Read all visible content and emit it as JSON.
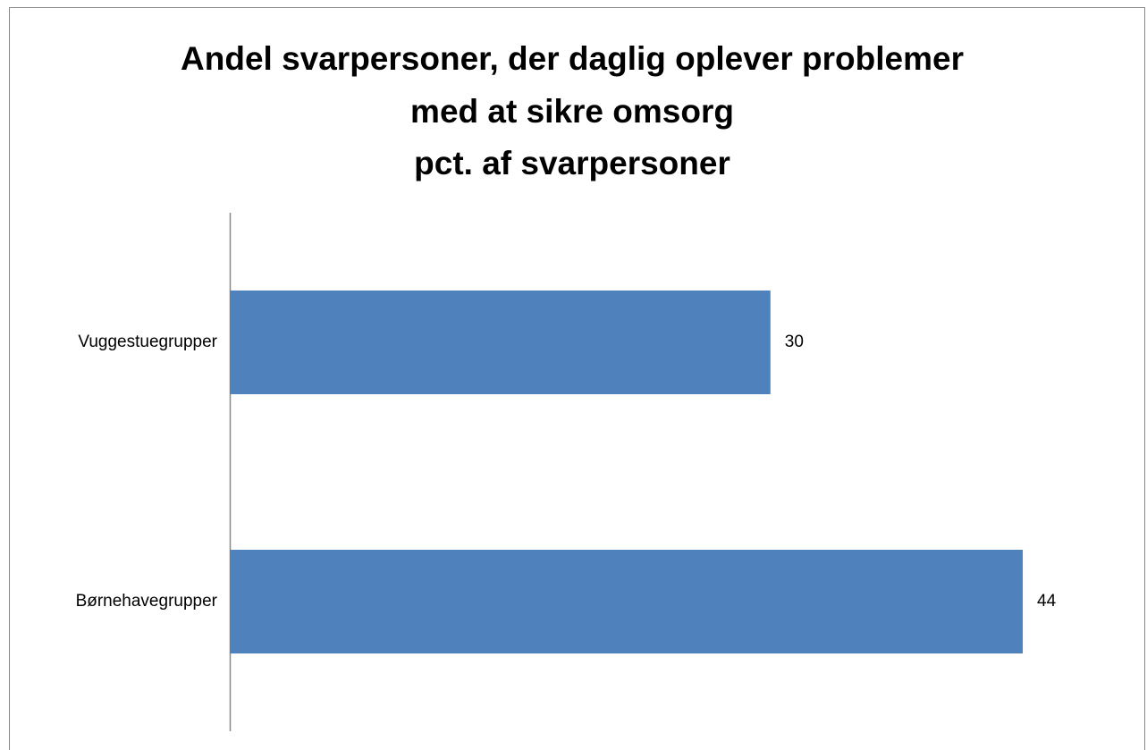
{
  "chart_data": {
    "type": "bar",
    "orientation": "horizontal",
    "title": [
      "Andel svarpersoner, der daglig oplever problemer",
      "med at sikre omsorg",
      "pct. af svarpersoner"
    ],
    "categories": [
      "Vuggestuegrupper",
      "Børnehavegrupper"
    ],
    "values": [
      30,
      44
    ],
    "color": "#4f81bd",
    "xlim": [
      0,
      50
    ]
  }
}
